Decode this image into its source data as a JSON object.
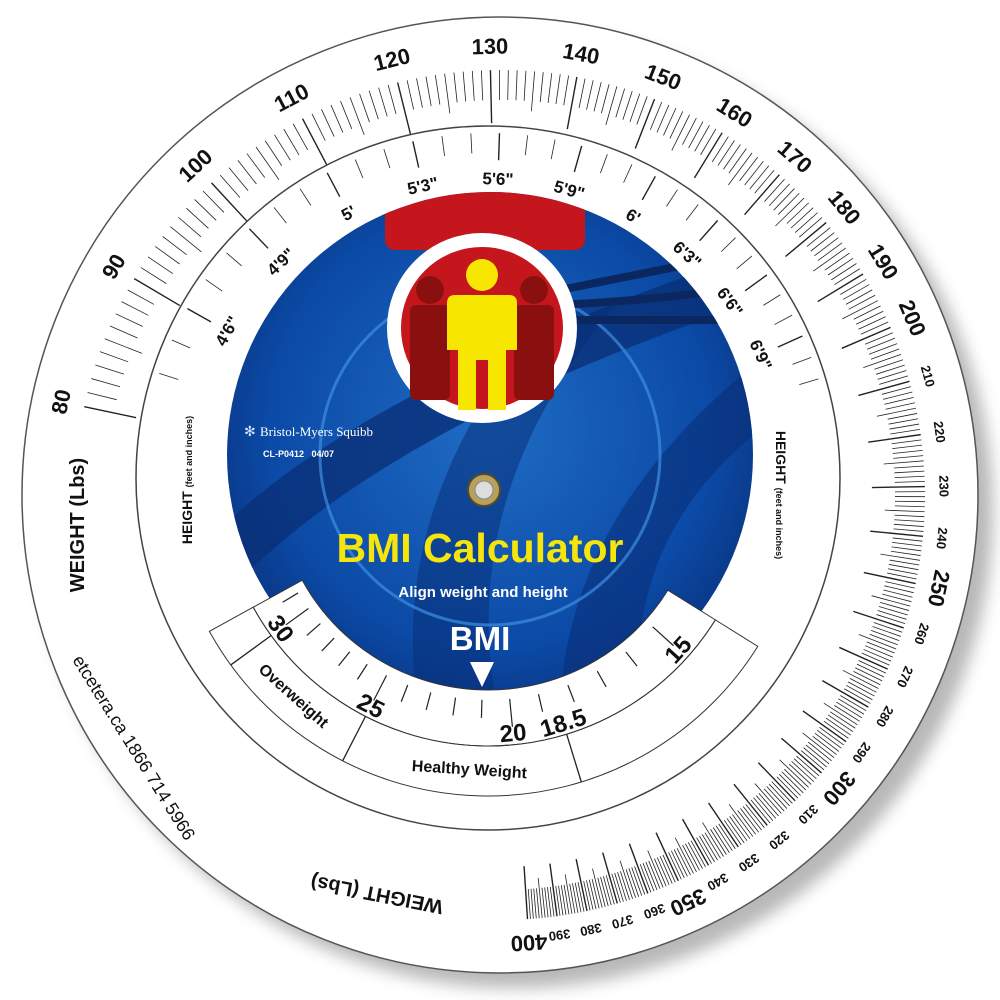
{
  "weight_scale": {
    "title": "WEIGHT (Lbs)",
    "scale": "log",
    "min": 80,
    "max": 400,
    "major_labels": [
      "80",
      "90",
      "100",
      "110",
      "120",
      "130",
      "140",
      "150",
      "160",
      "170",
      "180",
      "190",
      "200",
      "250",
      "300",
      "350",
      "400"
    ],
    "minor_labels": [
      "210",
      "220",
      "230",
      "240",
      "260",
      "270",
      "280",
      "290",
      "310",
      "320",
      "330",
      "340",
      "360",
      "370",
      "380",
      "390"
    ]
  },
  "height_scale": {
    "title": "HEIGHT",
    "subtitle": "(feet and inches)",
    "scale": "log",
    "labels": [
      {
        "text": "4'6\"",
        "inches": 54
      },
      {
        "text": "4'9\"",
        "inches": 57
      },
      {
        "text": "5'",
        "inches": 60
      },
      {
        "text": "5'3\"",
        "inches": 63
      },
      {
        "text": "5'6\"",
        "inches": 66
      },
      {
        "text": "5'9\"",
        "inches": 69
      },
      {
        "text": "6'",
        "inches": 72
      },
      {
        "text": "6'3\"",
        "inches": 75
      },
      {
        "text": "6'6\"",
        "inches": 78
      },
      {
        "text": "6'9\"",
        "inches": 81
      }
    ]
  },
  "bmi_window": {
    "labels": [
      {
        "text": "30",
        "value": 30
      },
      {
        "text": "25",
        "value": 25
      },
      {
        "text": "20",
        "value": 20
      },
      {
        "text": "18.5",
        "value": 18.5
      },
      {
        "text": "15",
        "value": 15
      }
    ],
    "categories": [
      "Overweight",
      "Healthy Weight"
    ]
  },
  "center": {
    "brand": "Bristol-Myers Squibb",
    "code": "CL-P0412   04/07",
    "title": "BMI Calculator",
    "instruction": "Align weight and height",
    "pointer_label": "BMI"
  },
  "footer": {
    "contact": "etcetera.ca 1866 714 5966"
  },
  "colors": {
    "disc_blue": "#0a3a8c",
    "disc_light_blue": "#1f73c9",
    "title_yellow": "#f5e50a",
    "figure_red": "#b81d1d",
    "figure_yellow": "#f7e600"
  }
}
